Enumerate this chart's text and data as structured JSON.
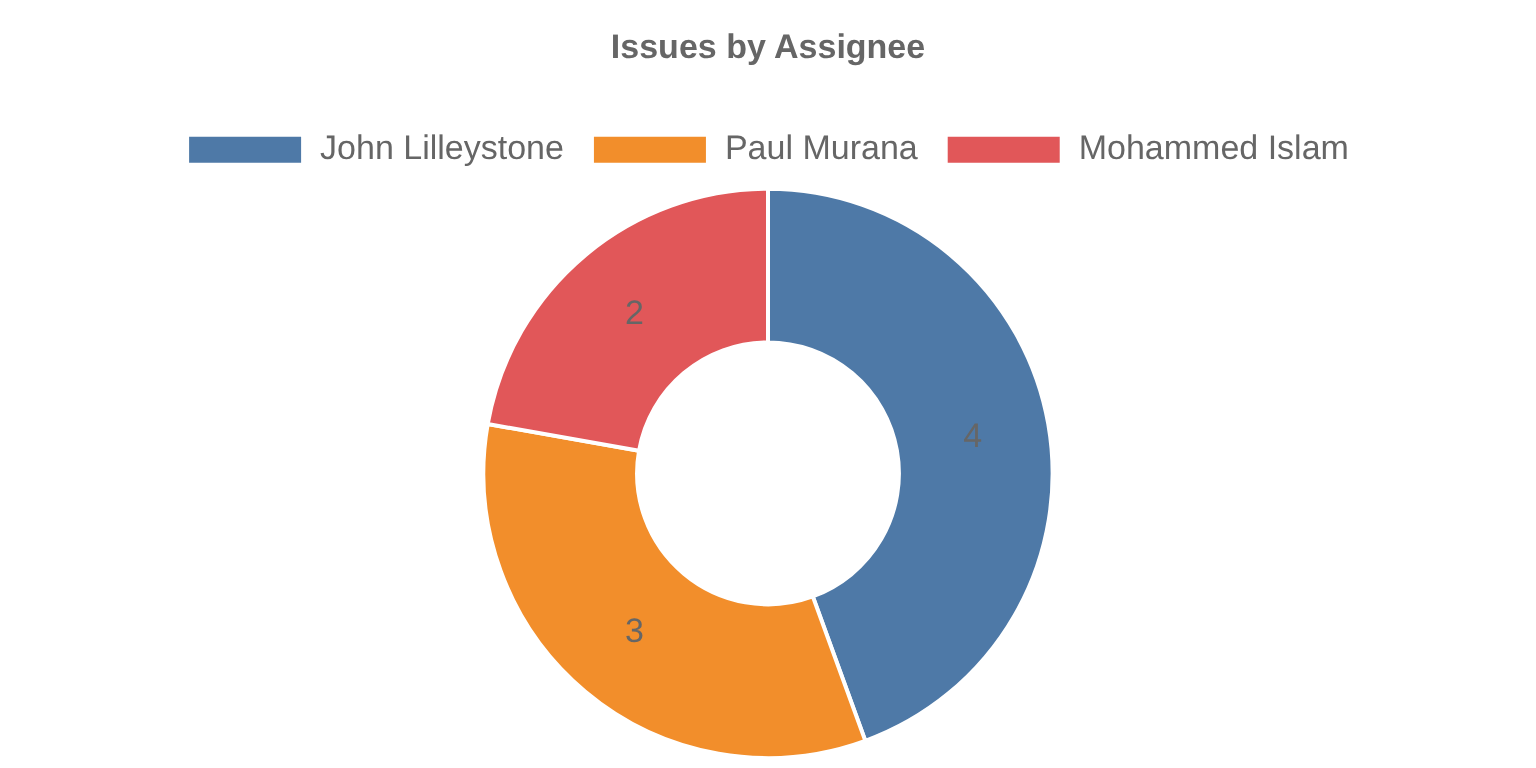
{
  "chart_data": {
    "type": "donut",
    "title": "Issues by Assignee",
    "categories": [
      "John Lilleystone",
      "Paul Murana",
      "Mohammed Islam"
    ],
    "values": [
      4,
      3,
      2
    ],
    "colors": [
      "#4e79a7",
      "#f28e2b",
      "#e15759"
    ],
    "legend": "top",
    "data_labels": true
  }
}
